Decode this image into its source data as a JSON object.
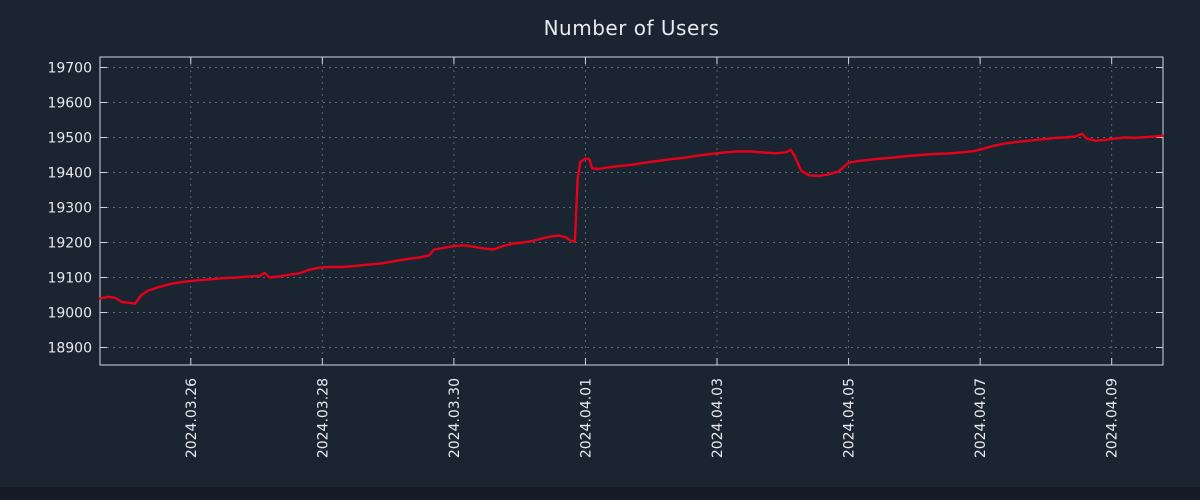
{
  "page": {
    "background": "#1b2431",
    "footer_color": "#141b26"
  },
  "chart_data": {
    "type": "line",
    "title": "Number of Users",
    "xlabel": "",
    "ylabel": "",
    "grid": true,
    "legend": "none",
    "xlim": [
      24.62,
      40.78
    ],
    "ylim": [
      18850,
      19730
    ],
    "colors": {
      "line": "#e8randomness001f",
      "frame": "#d2d7dd",
      "grid": "#aeb6bf",
      "tick_text": "#e7eaee",
      "title_text": "#e7eaee"
    },
    "x_ticks": [
      {
        "value": 26,
        "label": "2024.03.26"
      },
      {
        "value": 28,
        "label": "2024.03.28"
      },
      {
        "value": 30,
        "label": "2024.03.30"
      },
      {
        "value": 32,
        "label": "2024.04.01"
      },
      {
        "value": 34,
        "label": "2024.04.03"
      },
      {
        "value": 36,
        "label": "2024.04.05"
      },
      {
        "value": 38,
        "label": "2024.04.07"
      },
      {
        "value": 40,
        "label": "2024.04.09"
      }
    ],
    "y_ticks": [
      {
        "value": 18900,
        "label": "18900"
      },
      {
        "value": 19000,
        "label": "19000"
      },
      {
        "value": 19100,
        "label": "19100"
      },
      {
        "value": 19200,
        "label": "19200"
      },
      {
        "value": 19300,
        "label": "19300"
      },
      {
        "value": 19400,
        "label": "19400"
      },
      {
        "value": 19500,
        "label": "19500"
      },
      {
        "value": 19600,
        "label": "19600"
      },
      {
        "value": 19700,
        "label": "19700"
      }
    ],
    "series": [
      {
        "name": "Number of Users",
        "color": "#e60019",
        "points": [
          [
            24.62,
            19040
          ],
          [
            24.75,
            19045
          ],
          [
            24.85,
            19042
          ],
          [
            24.95,
            19030
          ],
          [
            25.05,
            19028
          ],
          [
            25.15,
            19025
          ],
          [
            25.25,
            19050
          ],
          [
            25.35,
            19062
          ],
          [
            25.5,
            19072
          ],
          [
            25.7,
            19082
          ],
          [
            25.9,
            19088
          ],
          [
            26.1,
            19092
          ],
          [
            26.3,
            19095
          ],
          [
            26.5,
            19098
          ],
          [
            26.7,
            19100
          ],
          [
            26.9,
            19103
          ],
          [
            27.05,
            19105
          ],
          [
            27.12,
            19113
          ],
          [
            27.2,
            19100
          ],
          [
            27.35,
            19103
          ],
          [
            27.5,
            19108
          ],
          [
            27.65,
            19112
          ],
          [
            27.8,
            19122
          ],
          [
            27.95,
            19128
          ],
          [
            28.1,
            19130
          ],
          [
            28.3,
            19130
          ],
          [
            28.5,
            19133
          ],
          [
            28.7,
            19137
          ],
          [
            28.9,
            19140
          ],
          [
            29.1,
            19147
          ],
          [
            29.3,
            19153
          ],
          [
            29.5,
            19158
          ],
          [
            29.62,
            19163
          ],
          [
            29.7,
            19180
          ],
          [
            29.85,
            19185
          ],
          [
            30.0,
            19190
          ],
          [
            30.15,
            19192
          ],
          [
            30.3,
            19188
          ],
          [
            30.45,
            19183
          ],
          [
            30.6,
            19180
          ],
          [
            30.75,
            19190
          ],
          [
            30.9,
            19197
          ],
          [
            31.05,
            19200
          ],
          [
            31.2,
            19205
          ],
          [
            31.35,
            19212
          ],
          [
            31.5,
            19218
          ],
          [
            31.6,
            19220
          ],
          [
            31.7,
            19215
          ],
          [
            31.78,
            19205
          ],
          [
            31.84,
            19203
          ],
          [
            31.88,
            19380
          ],
          [
            31.92,
            19430
          ],
          [
            32.0,
            19440
          ],
          [
            32.06,
            19438
          ],
          [
            32.1,
            19412
          ],
          [
            32.2,
            19410
          ],
          [
            32.35,
            19415
          ],
          [
            32.5,
            19418
          ],
          [
            32.7,
            19422
          ],
          [
            32.9,
            19428
          ],
          [
            33.1,
            19433
          ],
          [
            33.3,
            19438
          ],
          [
            33.5,
            19442
          ],
          [
            33.7,
            19448
          ],
          [
            33.9,
            19453
          ],
          [
            34.1,
            19457
          ],
          [
            34.3,
            19460
          ],
          [
            34.5,
            19460
          ],
          [
            34.7,
            19457
          ],
          [
            34.9,
            19455
          ],
          [
            35.05,
            19458
          ],
          [
            35.12,
            19465
          ],
          [
            35.18,
            19448
          ],
          [
            35.28,
            19405
          ],
          [
            35.4,
            19392
          ],
          [
            35.55,
            19390
          ],
          [
            35.7,
            19395
          ],
          [
            35.85,
            19403
          ],
          [
            36.0,
            19428
          ],
          [
            36.15,
            19433
          ],
          [
            36.3,
            19436
          ],
          [
            36.5,
            19440
          ],
          [
            36.7,
            19443
          ],
          [
            36.9,
            19447
          ],
          [
            37.1,
            19450
          ],
          [
            37.3,
            19453
          ],
          [
            37.5,
            19454
          ],
          [
            37.7,
            19457
          ],
          [
            37.9,
            19461
          ],
          [
            38.05,
            19468
          ],
          [
            38.2,
            19476
          ],
          [
            38.35,
            19482
          ],
          [
            38.5,
            19486
          ],
          [
            38.65,
            19489
          ],
          [
            38.8,
            19492
          ],
          [
            39.0,
            19496
          ],
          [
            39.15,
            19499
          ],
          [
            39.3,
            19500
          ],
          [
            39.45,
            19503
          ],
          [
            39.55,
            19511
          ],
          [
            39.62,
            19497
          ],
          [
            39.75,
            19491
          ],
          [
            39.9,
            19493
          ],
          [
            40.05,
            19497
          ],
          [
            40.2,
            19500
          ],
          [
            40.35,
            19499
          ],
          [
            40.5,
            19501
          ],
          [
            40.65,
            19503
          ],
          [
            40.78,
            19505
          ]
        ]
      }
    ]
  }
}
